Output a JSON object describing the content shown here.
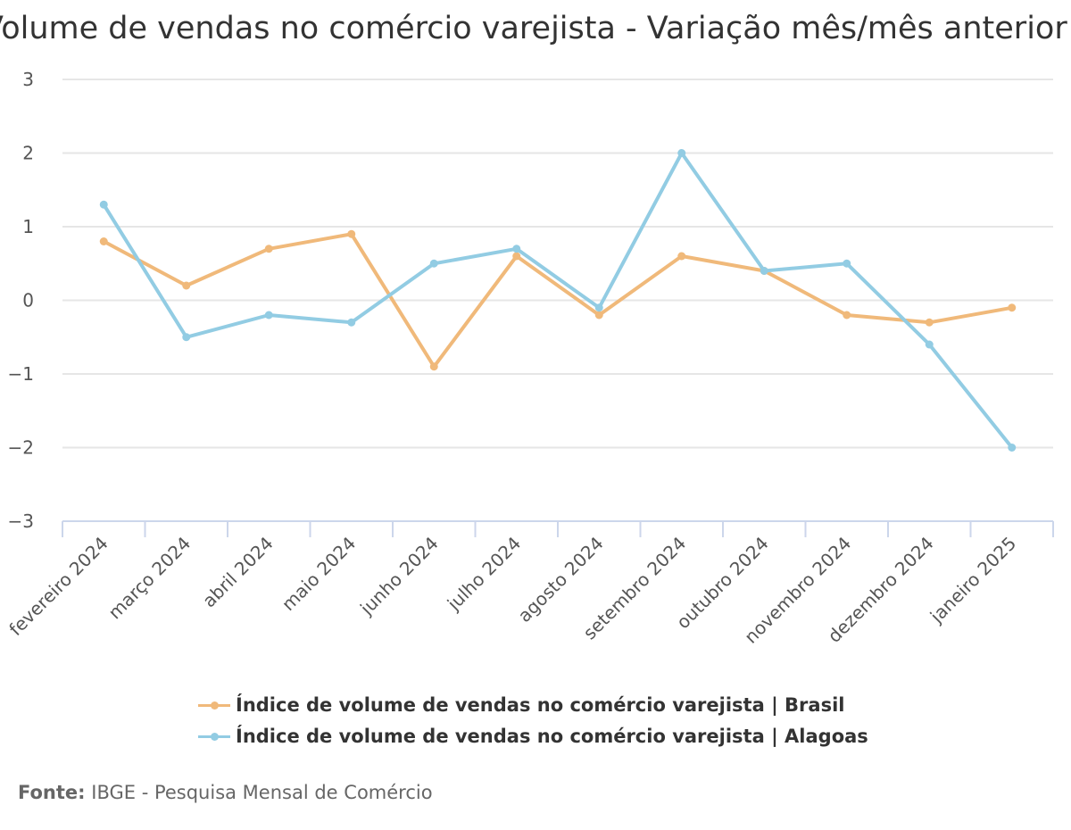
{
  "chart_data": {
    "type": "line",
    "title": "Volume de vendas no comércio varejista - Variação mês/mês anterior (%)",
    "categories": [
      "fevereiro 2024",
      "março 2024",
      "abril 2024",
      "maio 2024",
      "junho 2024",
      "julho 2024",
      "agosto 2024",
      "setembro 2024",
      "outubro 2024",
      "novembro 2024",
      "dezembro 2024",
      "janeiro 2025"
    ],
    "series": [
      {
        "name": "Índice de volume de vendas no comércio varejista | Brasil",
        "color": "#f0b97a",
        "values": [
          0.8,
          0.2,
          0.7,
          0.9,
          -0.9,
          0.6,
          -0.2,
          0.6,
          0.4,
          -0.2,
          -0.3,
          -0.1
        ]
      },
      {
        "name": "Índice de volume de vendas no comércio varejista | Alagoas",
        "color": "#92cce3",
        "values": [
          1.3,
          -0.5,
          -0.2,
          -0.3,
          0.5,
          0.7,
          -0.1,
          2.0,
          0.4,
          0.5,
          -0.6,
          -2.0
        ]
      }
    ],
    "yticks": [
      "3",
      "2",
      "1",
      "0",
      "−1",
      "−2",
      "−3"
    ],
    "ylim": [
      -3,
      3
    ],
    "grid": true,
    "legend": "bottom"
  },
  "source": {
    "label": "Fonte:",
    "text": "IBGE - Pesquisa Mensal de Comércio"
  }
}
